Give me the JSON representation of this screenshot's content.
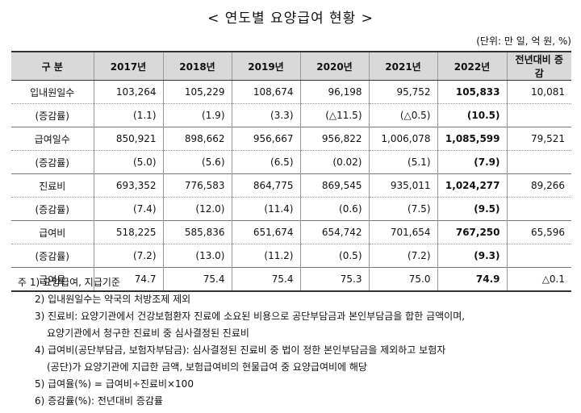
{
  "title": "< 연도별 요양급여 현황 >",
  "unit": "(단위: 만 일, 억 원, %)",
  "table": {
    "headers": [
      "구 분",
      "2017년",
      "2018년",
      "2019년",
      "2020년",
      "2021년",
      "2022년",
      "전년대비 증감"
    ],
    "rows": [
      {
        "label": "입내원일수",
        "values": [
          "103,264",
          "105,229",
          "108,674",
          "96,198",
          "95,752",
          "105,833",
          "10,081"
        ]
      },
      {
        "label": "(증감률)",
        "values": [
          "(1.1)",
          "(1.9)",
          "(3.3)",
          "(△11.5)",
          "(△0.5)",
          "(10.5)",
          ""
        ]
      },
      {
        "label": "급여일수",
        "values": [
          "850,921",
          "898,662",
          "956,667",
          "956,822",
          "1,006,078",
          "1,085,599",
          "79,521"
        ]
      },
      {
        "label": "(증감률)",
        "values": [
          "(5.0)",
          "(5.6)",
          "(6.5)",
          "(0.02)",
          "(5.1)",
          "(7.9)",
          ""
        ]
      },
      {
        "label": "진료비",
        "values": [
          "693,352",
          "776,583",
          "864,775",
          "869,545",
          "935,011",
          "1,024,277",
          "89,266"
        ]
      },
      {
        "label": "(증감률)",
        "values": [
          "(7.4)",
          "(12.0)",
          "(11.4)",
          "(0.6)",
          "(7.5)",
          "(9.5)",
          ""
        ]
      },
      {
        "label": "급여비",
        "values": [
          "518,225",
          "585,836",
          "651,674",
          "654,742",
          "701,654",
          "767,250",
          "65,596"
        ]
      },
      {
        "label": "(증감률)",
        "values": [
          "(7.2)",
          "(13.0)",
          "(11.2)",
          "(0.5)",
          "(7.2)",
          "(9.3)",
          ""
        ]
      },
      {
        "label": "급여율",
        "values": [
          "74.7",
          "75.4",
          "75.4",
          "75.3",
          "75.0",
          "74.9",
          "△0.1"
        ]
      }
    ]
  },
  "notes": [
    "주 1) 요양급여, 지급기준",
    "2) 입내원일수는 약국의 처방조제 제외",
    "3) 진료비: 요양기관에서 건강보험환자 진료에 소요된 비용으로 공단부담금과 본인부담금을 합한 금액이며,",
    "요양기관에서 청구한 진료비 중 심사결정된 진료비",
    "4) 급여비(공단부담금, 보험자부담금): 심사결정된 진료비 중 법이 정한 본인부담금을 제외하고 보험자",
    "(공단)가 요양기관에 지급한 금액, 보험급여비의 현물급여 중 요양급여비에 해당",
    "5) 급여율(%) = 급여비÷진료비×100",
    "6) 증감률(%): 전년대비 증감률"
  ]
}
